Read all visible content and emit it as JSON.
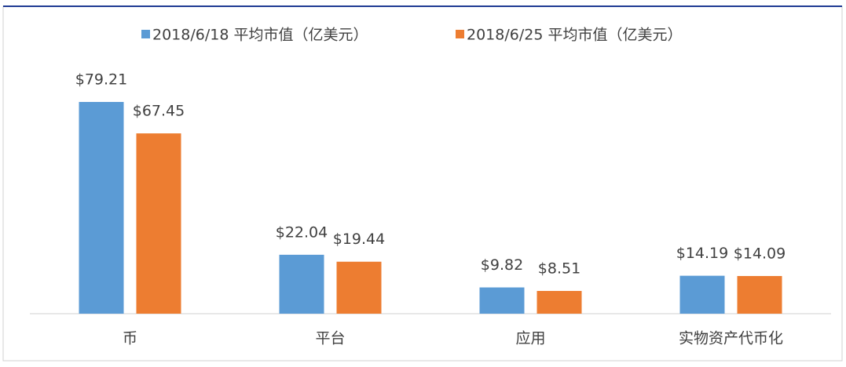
{
  "chart_data": {
    "type": "bar",
    "categories": [
      "币",
      "平台",
      "应用",
      "实物资产代币化"
    ],
    "series": [
      {
        "name": "2018/6/18 平均市值（亿美元）",
        "color": "#5b9bd5",
        "values": [
          79.21,
          22.04,
          9.82,
          14.19
        ],
        "value_labels": [
          "$79.21",
          "$22.04",
          "$9.82",
          "$14.19"
        ]
      },
      {
        "name": "2018/6/25 平均市值（亿美元）",
        "color": "#ed7d31",
        "values": [
          67.45,
          19.44,
          8.51,
          14.09
        ],
        "value_labels": [
          "$67.45",
          "$19.44",
          "$8.51",
          "$14.09"
        ]
      }
    ],
    "legend": "top"
  }
}
